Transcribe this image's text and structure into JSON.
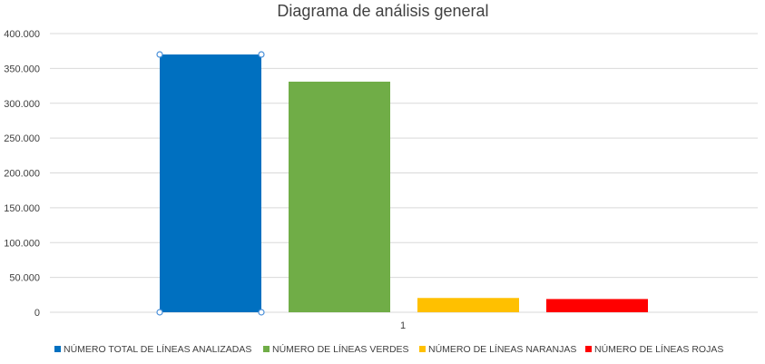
{
  "chart_data": {
    "type": "bar",
    "title": "Diagrama de análisis general",
    "xlabel": "",
    "ylabel": "",
    "categories": [
      "1"
    ],
    "ylim": [
      0,
      400000
    ],
    "ytick_values": [
      0,
      50000,
      100000,
      150000,
      200000,
      250000,
      300000,
      350000,
      400000
    ],
    "ytick_labels": [
      "0",
      "50.000",
      "100.000",
      "150.000",
      "200.000",
      "250.000",
      "300.000",
      "350.000",
      "400.000"
    ],
    "grid": true,
    "legend_position": "bottom",
    "series": [
      {
        "name": "NÚMERO TOTAL DE LÍNEAS ANALIZADAS",
        "values": [
          370000
        ],
        "color": "#0070C0"
      },
      {
        "name": "NÚMERO DE LÍNEAS VERDES",
        "values": [
          331000
        ],
        "color": "#70AD47"
      },
      {
        "name": "NÚMERO DE LÍNEAS NARANJAS",
        "values": [
          20500
        ],
        "color": "#FFC000"
      },
      {
        "name": "NÚMERO DE LÍNEAS ROJAS",
        "values": [
          19000
        ],
        "color": "#FF0000"
      }
    ]
  }
}
